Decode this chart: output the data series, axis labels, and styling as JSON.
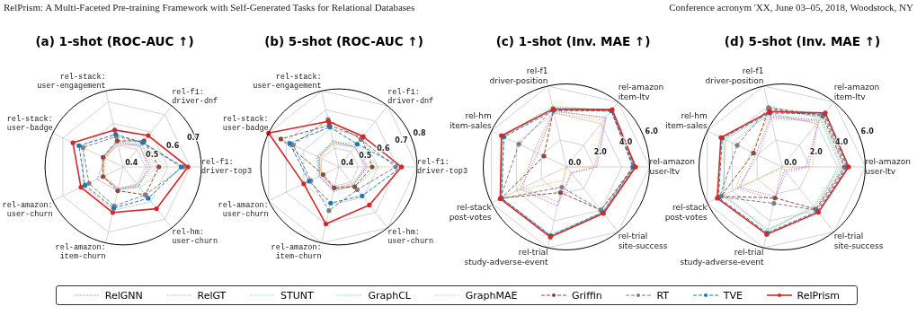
{
  "chart_data": [
    {
      "type": "radar",
      "title": "(a) 1-shot (ROC-AUC ↑)",
      "annotations": [
        "RelPrism: A Multi-Faceted Pre-training Framework with Self-Generated Tasks for Relational Databases",
        "Conference acronym 'XX, June 03–05, 2018, Woodstock, NY"
      ],
      "categories": [
        "rel-stack:\nuser-engagement",
        "rel-f1:\ndriver-dnf",
        "rel-f1:\ndriver-top3",
        "rel-hm:\nuser-churn",
        "rel-amazon:\nitem-churn",
        "rel-amazon:\nuser-churn",
        "rel-stack:\nuser-badge"
      ],
      "ylim": [
        0.4,
        0.75
      ],
      "yticks": [
        0.4,
        0.5,
        0.6,
        0.7
      ],
      "grid": true,
      "legend": "bottom",
      "series": [
        {
          "color": "#f5b642",
          "line_style": "dotted",
          "marker": "none",
          "values": [
            0.5,
            0.53,
            0.55,
            0.5,
            0.5,
            0.49,
            0.49
          ]
        },
        {
          "name": "RelGNN",
          "color": "#c05fc0",
          "line_style": "dotted",
          "marker": "none",
          "values": [
            0.51,
            0.52,
            0.52,
            0.51,
            0.51,
            0.53,
            0.49
          ]
        },
        {
          "name": "RelGT",
          "color": "#b08ee0",
          "line_style": "dotted",
          "marker": "none",
          "values": [
            0.52,
            0.52,
            0.51,
            0.51,
            0.5,
            0.5,
            0.5
          ]
        },
        {
          "name": "STUNT",
          "color": "#6fd0e8",
          "line_style": "dotted",
          "marker": "none",
          "values": [
            0.51,
            0.53,
            0.53,
            0.5,
            0.5,
            0.5,
            0.51
          ]
        },
        {
          "name": "GraphCL",
          "color": "#6ccf6c",
          "line_style": "dotted",
          "marker": "none",
          "values": [
            0.52,
            0.54,
            0.59,
            0.52,
            0.5,
            0.5,
            0.5
          ]
        },
        {
          "name": "GraphMAE",
          "color": "#f4a0a0",
          "line_style": "dotted",
          "marker": "none",
          "values": [
            0.51,
            0.52,
            0.52,
            0.51,
            0.5,
            0.5,
            0.5
          ]
        },
        {
          "name": "Griffin",
          "color": "#8c4a3f",
          "line_style": "dashed",
          "marker": "circle",
          "values": [
            0.52,
            0.55,
            0.56,
            0.56,
            0.51,
            0.5,
            0.5
          ]
        },
        {
          "name": "RT",
          "color": "#7f7f7f",
          "line_style": "dashed",
          "marker": "circle",
          "values": [
            0.54,
            0.54,
            0.67,
            0.56,
            0.58,
            0.57,
            0.6
          ]
        },
        {
          "name": "TVE",
          "color": "#1f77b4",
          "line_style": "dashed",
          "marker": "circle",
          "values": [
            0.55,
            0.54,
            0.66,
            0.58,
            0.59,
            0.59,
            0.62
          ]
        },
        {
          "name": "RelPrism",
          "color": "#d62728",
          "line_style": "solid",
          "marker": "circle",
          "values": [
            0.57,
            0.58,
            0.69,
            0.64,
            0.61,
            0.61,
            0.65
          ]
        }
      ]
    },
    {
      "type": "radar",
      "title": "(b) 5-shot (ROC-AUC ↑)",
      "categories": [
        "rel-stack:\nuser-engagement",
        "rel-f1:\ndriver-dnf",
        "rel-f1:\ndriver-top3",
        "rel-hm:\nuser-churn",
        "rel-amazon:\nitem-churn",
        "rel-amazon:\nuser-churn",
        "rel-stack:\nuser-badge"
      ],
      "ylim": [
        0.4,
        0.8
      ],
      "yticks": [
        0.4,
        0.5,
        0.6,
        0.7,
        0.8
      ],
      "grid": true,
      "series": [
        {
          "color": "#f5b642",
          "line_style": "dotted",
          "marker": "none",
          "values": [
            0.52,
            0.54,
            0.55,
            0.51,
            0.51,
            0.5,
            0.52
          ]
        },
        {
          "color": "#c05fc0",
          "line_style": "dotted",
          "marker": "none",
          "values": [
            0.54,
            0.53,
            0.54,
            0.52,
            0.53,
            0.51,
            0.51
          ]
        },
        {
          "color": "#b08ee0",
          "line_style": "dotted",
          "marker": "none",
          "values": [
            0.53,
            0.53,
            0.53,
            0.52,
            0.52,
            0.51,
            0.52
          ]
        },
        {
          "color": "#6fd0e8",
          "line_style": "dotted",
          "marker": "none",
          "values": [
            0.53,
            0.53,
            0.55,
            0.52,
            0.52,
            0.52,
            0.53
          ]
        },
        {
          "color": "#6ccf6c",
          "line_style": "dotted",
          "marker": "none",
          "values": [
            0.53,
            0.55,
            0.6,
            0.53,
            0.52,
            0.51,
            0.52
          ]
        },
        {
          "color": "#f4a0a0",
          "line_style": "dotted",
          "marker": "none",
          "values": [
            0.52,
            0.53,
            0.54,
            0.51,
            0.51,
            0.5,
            0.51
          ]
        },
        {
          "color": "#8c4a3f",
          "line_style": "dashed",
          "marker": "circle",
          "values": [
            0.62,
            0.59,
            0.57,
            0.53,
            0.51,
            0.49,
            0.73
          ]
        },
        {
          "color": "#7f7f7f",
          "line_style": "dashed",
          "marker": "circle",
          "values": [
            0.65,
            0.58,
            0.69,
            0.55,
            0.63,
            0.56,
            0.66
          ]
        },
        {
          "color": "#1f77b4",
          "line_style": "dashed",
          "marker": "circle",
          "values": [
            0.61,
            0.55,
            0.72,
            0.59,
            0.59,
            0.57,
            0.68
          ]
        },
        {
          "color": "#d62728",
          "line_style": "solid",
          "marker": "circle",
          "values": [
            0.64,
            0.6,
            0.72,
            0.65,
            0.7,
            0.6,
            0.8
          ]
        }
      ]
    },
    {
      "type": "radar",
      "title": "(c) 1-shot (Inv. MAE ↑)",
      "categories": [
        "rel-f1\ndriver-position",
        "rel-amazon\nitem-ltv",
        "rel-amazon\nuser-ltv",
        "rel-trial\nsite-success",
        "rel-trial\nstudy-adverse-event",
        "rel-stack\npost-votes",
        "rel-hm\nitem-sales"
      ],
      "ylim": [
        0,
        6
      ],
      "yticks": [
        {
          "value": 0,
          "label": "0.0"
        },
        {
          "value": 2,
          "label": "2.0"
        },
        {
          "value": 4,
          "label": "4.0"
        },
        {
          "value": 6,
          "label": "6.0"
        }
      ],
      "grid": true,
      "series": [
        {
          "color": "#f5b642",
          "line_style": "dotted",
          "marker": "none",
          "values": [
            4.0,
            4.3,
            2.0,
            0.0,
            1.0,
            4.0,
            2.5
          ]
        },
        {
          "color": "#c05fc0",
          "line_style": "dotted",
          "marker": "none",
          "values": [
            4.1,
            4.6,
            2.2,
            0.6,
            2.9,
            3.7,
            2.3
          ]
        },
        {
          "color": "#b08ee0",
          "line_style": "dotted",
          "marker": "none",
          "values": [
            4.2,
            4.5,
            2.1,
            0.5,
            2.6,
            3.5,
            2.6
          ]
        },
        {
          "color": "#6fd0e8",
          "line_style": "dotted",
          "marker": "none",
          "values": [
            4.3,
            5.1,
            5.0,
            4.2,
            5.0,
            5.2,
            5.1
          ]
        },
        {
          "color": "#6ccf6c",
          "line_style": "dotted",
          "marker": "none",
          "values": [
            4.5,
            5.2,
            4.9,
            4.2,
            5.1,
            5.2,
            5.1
          ]
        },
        {
          "color": "#f4a0a0",
          "line_style": "dotted",
          "marker": "none",
          "values": [
            4.3,
            5.2,
            4.9,
            4.2,
            5.1,
            5.2,
            5.1
          ]
        },
        {
          "color": "#8c4a3f",
          "line_style": "dashed",
          "marker": "circle",
          "values": [
            4.2,
            5.2,
            4.9,
            4.0,
            1.9,
            5.2,
            1.8
          ]
        },
        {
          "color": "#7f7f7f",
          "line_style": "dashed",
          "marker": "circle",
          "values": [
            4.3,
            5.2,
            4.8,
            4.0,
            1.5,
            5.3,
            3.8
          ]
        },
        {
          "color": "#1f77b4",
          "line_style": "dashed",
          "marker": "circle",
          "values": [
            4.2,
            5.2,
            4.8,
            4.2,
            5.1,
            5.2,
            5.0
          ]
        },
        {
          "color": "#d62728",
          "line_style": "solid",
          "marker": "circle",
          "values": [
            4.3,
            5.3,
            5.0,
            4.3,
            5.2,
            5.3,
            5.2
          ]
        }
      ]
    },
    {
      "type": "radar",
      "title": "(d) 5-shot (Inv. MAE ↑)",
      "categories": [
        "rel-f1\ndriver-position",
        "rel-amazon\nitem-ltv",
        "rel-amazon\nuser-ltv",
        "rel-trial\nsite-success",
        "rel-trial\nstudy-adverse-event",
        "rel-stack\npost-votes",
        "rel-hm\nitem-sales"
      ],
      "ylim": [
        0,
        6
      ],
      "yticks": [
        {
          "value": 0,
          "label": "0.0"
        },
        {
          "value": 2,
          "label": "2.0"
        },
        {
          "value": 4,
          "label": "4.0"
        },
        {
          "value": 6,
          "label": "6.0"
        }
      ],
      "grid": true,
      "series": [
        {
          "color": "#f5b642",
          "line_style": "dotted",
          "marker": "none",
          "values": [
            3.9,
            4.0,
            2.2,
            0.0,
            0.1,
            3.8,
            2.5
          ]
        },
        {
          "color": "#c05fc0",
          "line_style": "dotted",
          "marker": "none",
          "values": [
            3.7,
            4.3,
            1.7,
            0.3,
            2.2,
            3.4,
            2.1
          ]
        },
        {
          "color": "#b08ee0",
          "line_style": "dotted",
          "marker": "none",
          "values": [
            3.6,
            4.2,
            1.9,
            0.5,
            2.4,
            3.6,
            1.9
          ]
        },
        {
          "color": "#6fd0e8",
          "line_style": "dotted",
          "marker": "none",
          "values": [
            3.8,
            4.4,
            4.2,
            3.6,
            4.8,
            4.6,
            4.7
          ]
        },
        {
          "color": "#6ccf6c",
          "line_style": "dotted",
          "marker": "none",
          "values": [
            4.5,
            4.5,
            4.3,
            3.7,
            4.7,
            4.7,
            4.6
          ]
        },
        {
          "color": "#f4a0a0",
          "line_style": "dotted",
          "marker": "none",
          "values": [
            4.2,
            4.6,
            4.4,
            3.8,
            4.6,
            4.8,
            4.5
          ]
        },
        {
          "color": "#8c4a3f",
          "line_style": "dashed",
          "marker": "circle",
          "values": [
            4.3,
            4.7,
            4.5,
            3.9,
            2.3,
            4.9,
            2.3
          ]
        },
        {
          "color": "#7f7f7f",
          "line_style": "dashed",
          "marker": "circle",
          "values": [
            4.4,
            4.8,
            4.6,
            4.0,
            2.7,
            5.0,
            3.6
          ]
        },
        {
          "color": "#1f77b4",
          "line_style": "dashed",
          "marker": "circle",
          "values": [
            4.0,
            4.9,
            4.7,
            4.1,
            4.9,
            5.1,
            4.8
          ]
        },
        {
          "color": "#d62728",
          "line_style": "solid",
          "marker": "circle",
          "values": [
            4.1,
            5.0,
            4.8,
            4.2,
            5.0,
            5.2,
            4.9
          ]
        }
      ]
    }
  ]
}
